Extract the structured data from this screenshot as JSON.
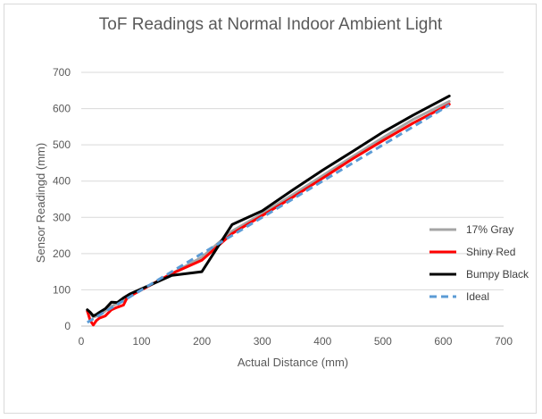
{
  "chart_data": {
    "type": "line",
    "title": "ToF Readings at Normal Indoor Ambient Light",
    "xlabel": "Actual Distance (mm)",
    "ylabel": "Sensor Readingd (mm)",
    "xlim": [
      0,
      700
    ],
    "ylim": [
      0,
      700
    ],
    "xticks": [
      "0",
      "100",
      "200",
      "300",
      "400",
      "500",
      "600",
      "700"
    ],
    "yticks": [
      "0",
      "100",
      "200",
      "300",
      "400",
      "500",
      "600",
      "700"
    ],
    "grid": "horizontal",
    "legend_position": "right",
    "series": [
      {
        "name": "17% Gray",
        "color": "#a5a5a5",
        "style": "solid",
        "x": [
          10,
          15,
          20,
          30,
          40,
          50,
          60,
          70,
          80,
          100,
          150,
          200,
          250,
          300,
          350,
          400,
          450,
          500,
          550,
          610
        ],
        "y": [
          40,
          35,
          25,
          30,
          42,
          55,
          62,
          72,
          85,
          100,
          145,
          190,
          262,
          310,
          362,
          415,
          468,
          520,
          570,
          620
        ]
      },
      {
        "name": "Shiny Red",
        "color": "#ff0000",
        "style": "solid",
        "x": [
          10,
          15,
          20,
          25,
          30,
          40,
          50,
          60,
          70,
          75,
          80,
          100,
          150,
          200,
          250,
          300,
          350,
          400,
          450,
          500,
          550,
          610
        ],
        "y": [
          42,
          15,
          3,
          15,
          22,
          28,
          45,
          52,
          58,
          75,
          82,
          100,
          145,
          182,
          255,
          305,
          355,
          408,
          462,
          512,
          560,
          612
        ]
      },
      {
        "name": "Bumpy Black",
        "color": "#000000",
        "style": "solid",
        "x": [
          10,
          15,
          20,
          25,
          30,
          40,
          50,
          60,
          70,
          80,
          100,
          150,
          200,
          250,
          300,
          350,
          400,
          450,
          500,
          550,
          610
        ],
        "y": [
          45,
          38,
          28,
          32,
          38,
          48,
          66,
          65,
          78,
          88,
          103,
          140,
          150,
          280,
          318,
          375,
          430,
          482,
          535,
          582,
          635
        ]
      },
      {
        "name": "Ideal",
        "color": "#5b9bd5",
        "style": "dashed",
        "x": [
          10,
          610
        ],
        "y": [
          10,
          610
        ]
      }
    ]
  }
}
